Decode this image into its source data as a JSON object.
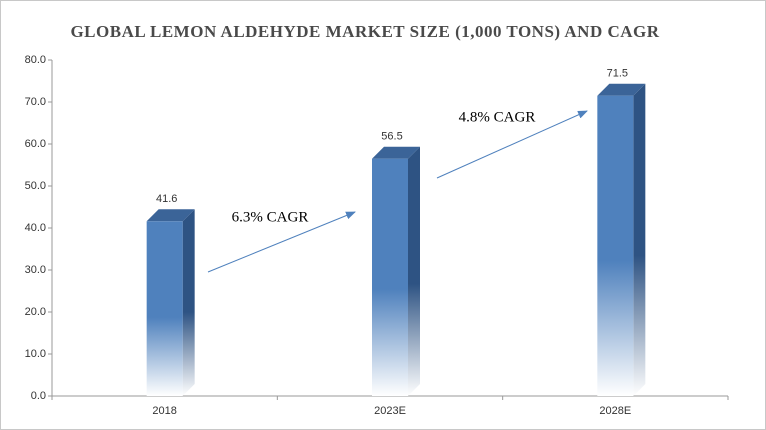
{
  "chart_data": {
    "type": "bar3d",
    "title": "GLOBAL LEMON ALDEHYDE MARKET SIZE (1,000 TONS) AND CAGR",
    "categories": [
      "2018",
      "2023E",
      "2028E"
    ],
    "values": [
      41.6,
      56.5,
      71.5
    ],
    "color": "#4f81bd",
    "ylim": [
      0,
      80
    ],
    "yticks": [
      {
        "value": 0,
        "label": "0.0"
      },
      {
        "value": 10,
        "label": "10.0"
      },
      {
        "value": 20,
        "label": "20.0"
      },
      {
        "value": 30,
        "label": "30.0"
      },
      {
        "value": 40,
        "label": "40.0"
      },
      {
        "value": 50,
        "label": "50.0"
      },
      {
        "value": 60,
        "label": "60.0"
      },
      {
        "value": 70,
        "label": "70.0"
      },
      {
        "value": 80,
        "label": "80.0"
      }
    ],
    "annotations": [
      "6.3% CAGR",
      "4.8% CAGR"
    ]
  }
}
